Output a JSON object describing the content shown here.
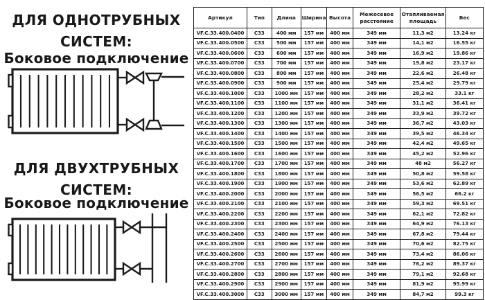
{
  "page": {
    "background": "#ffffff",
    "text_color": "#1b1b1b",
    "border_color": "#1b1b1b"
  },
  "left_panel": {
    "section1": {
      "heading": "ДЛЯ ОДНОТРУБНЫХ СИСТЕМ:",
      "subheading": "Боковое подключение",
      "diagram": "single-pipe-side-connection-radiator"
    },
    "section2": {
      "heading": "ДЛЯ ДВУХТРУБНЫХ СИСТЕМ:",
      "subheading": "Боковое подключение",
      "diagram": "two-pipe-side-connection-radiator"
    }
  },
  "table": {
    "columns": [
      "Артикул",
      "Тип",
      "Длина",
      "Ширина",
      "Высота",
      "Межосевое расстояние",
      "Отапливаемая площадь",
      "Вес"
    ],
    "rows": [
      [
        "VF.C.33.400.0400",
        "C33",
        "400 мм",
        "157 мм",
        "400 мм",
        "349 мм",
        "11,3 м2",
        "13.24 кг"
      ],
      [
        "VF.C.33.400.0500",
        "C33",
        "500 мм",
        "157 мм",
        "400 мм",
        "349 мм",
        "14,1 м2",
        "16.55 кг"
      ],
      [
        "VF.C.33.400.0600",
        "C33",
        "600 мм",
        "157 мм",
        "400 мм",
        "349 мм",
        "16,9 м2",
        "19.86 кг"
      ],
      [
        "VF.C.33.400.0700",
        "C33",
        "700 мм",
        "157 мм",
        "400 мм",
        "349 мм",
        "19,8 м2",
        "23.17 кг"
      ],
      [
        "VF.C.33.400.0800",
        "C33",
        "800 мм",
        "157 мм",
        "400 мм",
        "349 мм",
        "22,6 м2",
        "26.48 кг"
      ],
      [
        "VF.C.33.400.0900",
        "C33",
        "900 мм",
        "157 мм",
        "400 мм",
        "349 мм",
        "25,4 м2",
        "29.79 кг"
      ],
      [
        "VF.C.33.400.1000",
        "C33",
        "1000 мм",
        "157 мм",
        "400 мм",
        "349 мм",
        "28,2 м2",
        "33.1 кг"
      ],
      [
        "VF.C.33.400.1100",
        "C33",
        "1100 мм",
        "157 мм",
        "400 мм",
        "349 мм",
        "31,1 м2",
        "36.41 кг"
      ],
      [
        "VF.C.33.400.1200",
        "C33",
        "1200 мм",
        "157 мм",
        "400 мм",
        "349 мм",
        "33,9 м2",
        "39.72 кг"
      ],
      [
        "VF.C.33.400.1300",
        "C33",
        "1300 мм",
        "157 мм",
        "400 мм",
        "349 мм",
        "36,7 м2",
        "43.03 кг"
      ],
      [
        "VF.C.33.400.1400",
        "C33",
        "1400 мм",
        "157 мм",
        "400 мм",
        "349 мм",
        "39,5 м2",
        "46.34 кг"
      ],
      [
        "VF.C.33.400.1500",
        "C33",
        "1500 мм",
        "157 мм",
        "400 мм",
        "349 мм",
        "42,4 м2",
        "49.65 кг"
      ],
      [
        "VF.C.33.400.1600",
        "C33",
        "1600 мм",
        "157 мм",
        "400 мм",
        "349 мм",
        "45,2 м2",
        "52.96 кг"
      ],
      [
        "VF.C.33.400.1700",
        "C33",
        "1700 мм",
        "157 мм",
        "400 мм",
        "349 мм",
        "48 м2",
        "56.27 кг"
      ],
      [
        "VF.C.33.400.1800",
        "C33",
        "1800 мм",
        "157 мм",
        "400 мм",
        "349 мм",
        "50,8 м2",
        "59.58 кг"
      ],
      [
        "VF.C.33.400.1900",
        "C33",
        "1900 мм",
        "157 мм",
        "400 мм",
        "349 мм",
        "53,6 м2",
        "62.89 кг"
      ],
      [
        "VF.C.33.400.2000",
        "C33",
        "2000 мм",
        "157 мм",
        "400 мм",
        "349 мм",
        "56,5 м2",
        "66.2 кг"
      ],
      [
        "VF.C.33.400.2100",
        "C33",
        "2100 мм",
        "157 мм",
        "400 мм",
        "349 мм",
        "59,3 м2",
        "69.51 кг"
      ],
      [
        "VF.C.33.400.2200",
        "C33",
        "2200 мм",
        "157 мм",
        "400 мм",
        "349 мм",
        "62,1 м2",
        "72.82 кг"
      ],
      [
        "VF.C.33.400.2300",
        "C33",
        "2300 мм",
        "157 мм",
        "400 мм",
        "349 мм",
        "64,9 м2",
        "76.13 кг"
      ],
      [
        "VF.C.33.400.2400",
        "C33",
        "2400 мм",
        "157 мм",
        "400 мм",
        "349 мм",
        "67,8 м2",
        "79.44 кг"
      ],
      [
        "VF.C.33.400.2500",
        "C33",
        "2500 мм",
        "157 мм",
        "400 мм",
        "349 мм",
        "70,6 м2",
        "82.75 кг"
      ],
      [
        "VF.C.33.400.2600",
        "C33",
        "2600 мм",
        "157 мм",
        "400 мм",
        "349 мм",
        "73,4 м2",
        "86.06 кг"
      ],
      [
        "VF.C.33.400.2700",
        "C33",
        "2700 мм",
        "157 мм",
        "400 мм",
        "349 мм",
        "76,2 м2",
        "89.37 кг"
      ],
      [
        "VF.C.33.400.2800",
        "C33",
        "2800 мм",
        "157 мм",
        "400 мм",
        "349 мм",
        "79,1 м2",
        "92.68 кг"
      ],
      [
        "VF.C.33.400.2900",
        "C33",
        "2900 мм",
        "157 мм",
        "400 мм",
        "349 мм",
        "81,9 м2",
        "95.99 кг"
      ],
      [
        "VF.C.33.400.3000",
        "C33",
        "3000 мм",
        "157 мм",
        "400 мм",
        "349 мм",
        "84,7 м2",
        "99.3 кг"
      ]
    ]
  }
}
